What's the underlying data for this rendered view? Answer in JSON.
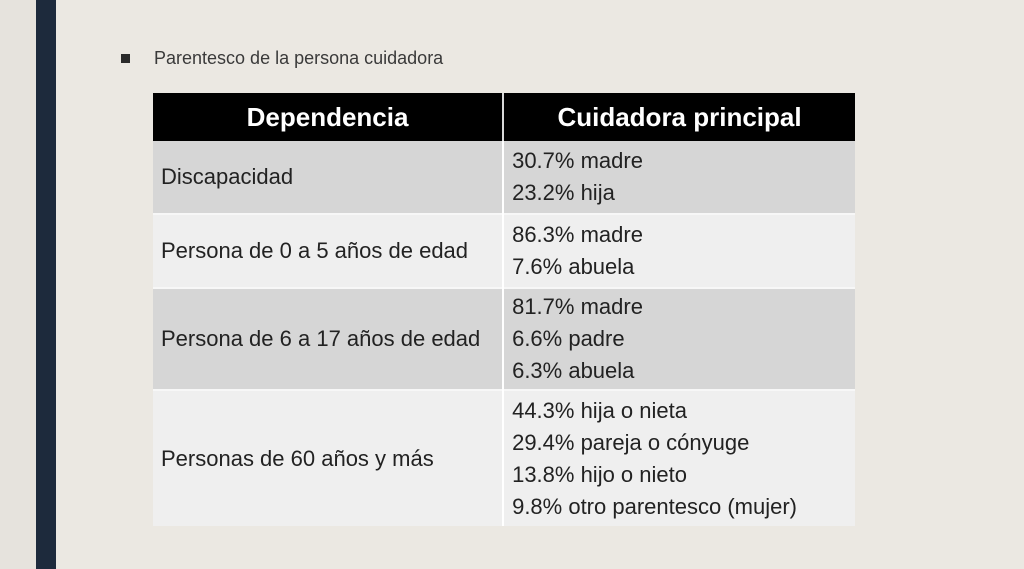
{
  "bullet": {
    "text": "Parentesco de la persona cuidadora"
  },
  "table": {
    "headers": [
      "Dependencia",
      "Cuidadora principal"
    ],
    "rows": [
      {
        "dependencia": "Discapacidad",
        "cuidadora": [
          "30.7% madre",
          "23.2% hija"
        ]
      },
      {
        "dependencia": "Persona de 0 a 5 años de edad",
        "cuidadora": [
          "86.3% madre",
          "7.6% abuela"
        ]
      },
      {
        "dependencia": "Persona de 6 a 17 años de edad",
        "cuidadora": [
          "81.7% madre",
          "6.6% padre",
          "6.3% abuela"
        ]
      },
      {
        "dependencia": "Personas de 60 años y más",
        "cuidadora": [
          "44.3% hija o nieta",
          "29.4% pareja o cónyuge",
          "13.8% hijo o nieto",
          "9.8% otro parentesco (mujer)"
        ]
      }
    ]
  },
  "colors": {
    "side_bar": "#1d2a3c",
    "header_bg": "#000000",
    "row_dark": "#d6d6d6",
    "row_light": "#efefef"
  }
}
